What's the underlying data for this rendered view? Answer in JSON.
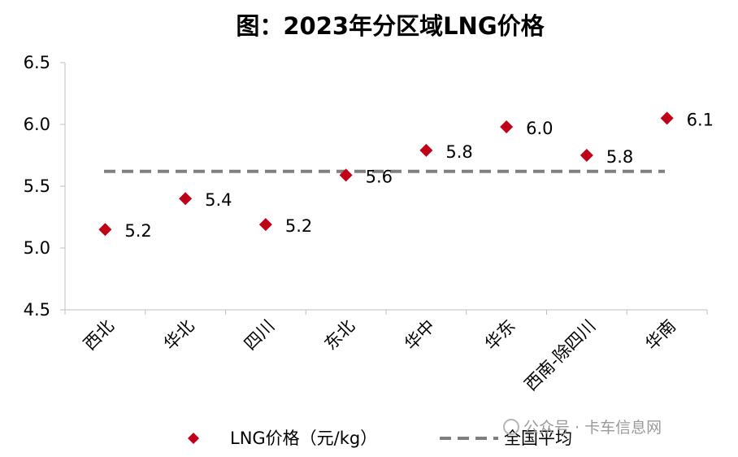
{
  "chart_data": {
    "type": "scatter",
    "title": "图：2023年分区域LNG价格",
    "categories": [
      "西北",
      "华北",
      "四川",
      "东北",
      "华中",
      "华东",
      "西南-除四川",
      "华南"
    ],
    "series": [
      {
        "name": "LNG价格（元/kg）",
        "values": [
          5.15,
          5.4,
          5.19,
          5.59,
          5.79,
          5.98,
          5.75,
          6.05
        ],
        "labels": [
          "5.2",
          "5.4",
          "5.2",
          "5.6",
          "5.8",
          "6.0",
          "5.8",
          "6.1"
        ],
        "marker": "diamond",
        "color": "#C00018"
      },
      {
        "name": "全国平均",
        "value": 5.62,
        "style": "dashed",
        "color": "#7F7F7F"
      }
    ],
    "ylim": [
      4.5,
      6.5
    ],
    "yticks": [
      "4.5",
      "5.0",
      "5.5",
      "6.0",
      "6.5"
    ],
    "grid": false,
    "legend": "bottom",
    "xlabel": "",
    "ylabel": ""
  },
  "watermark": "公众号 · 卡车信息网"
}
